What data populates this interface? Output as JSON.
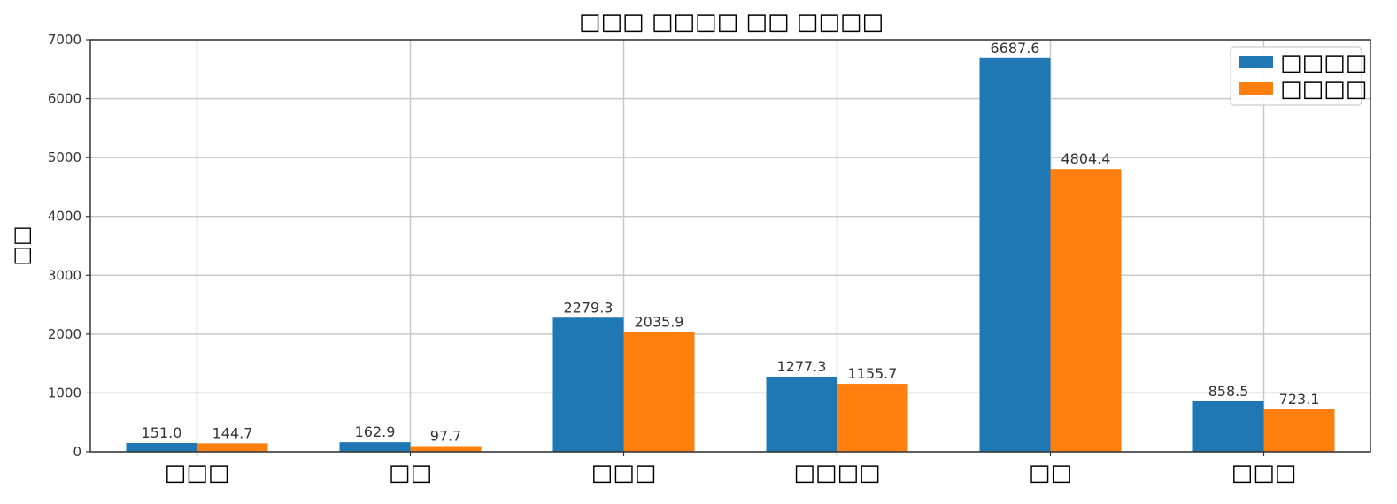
{
  "chart_data": {
    "type": "bar",
    "title": "□□□ □□□□ □□ □□□□",
    "xlabel": "",
    "ylabel": "□□",
    "categories": [
      "□□□",
      "□□",
      "□□□",
      "□□□□",
      "□□",
      "□□□"
    ],
    "series": [
      {
        "name": "□□□□",
        "color": "#1f77b4",
        "values": [
          151.0,
          162.9,
          2279.3,
          1277.3,
          6687.6,
          858.5
        ]
      },
      {
        "name": "□□□□",
        "color": "#ff7f0e",
        "values": [
          144.7,
          97.7,
          2035.9,
          1155.7,
          4804.4,
          723.1
        ]
      }
    ],
    "value_labels": [
      [
        "151.0",
        "162.9",
        "2279.3",
        "1277.3",
        "6687.6",
        "858.5"
      ],
      [
        "144.7",
        "97.7",
        "2035.9",
        "1155.7",
        "4804.4",
        "723.1"
      ]
    ],
    "ylim": [
      0,
      7000
    ],
    "yticks": [
      0,
      1000,
      2000,
      3000,
      4000,
      5000,
      6000,
      7000
    ],
    "ytick_labels": [
      "0",
      "1000",
      "2000",
      "3000",
      "4000",
      "5000",
      "6000",
      "7000"
    ],
    "grid": true,
    "legend_position": "top-right"
  }
}
